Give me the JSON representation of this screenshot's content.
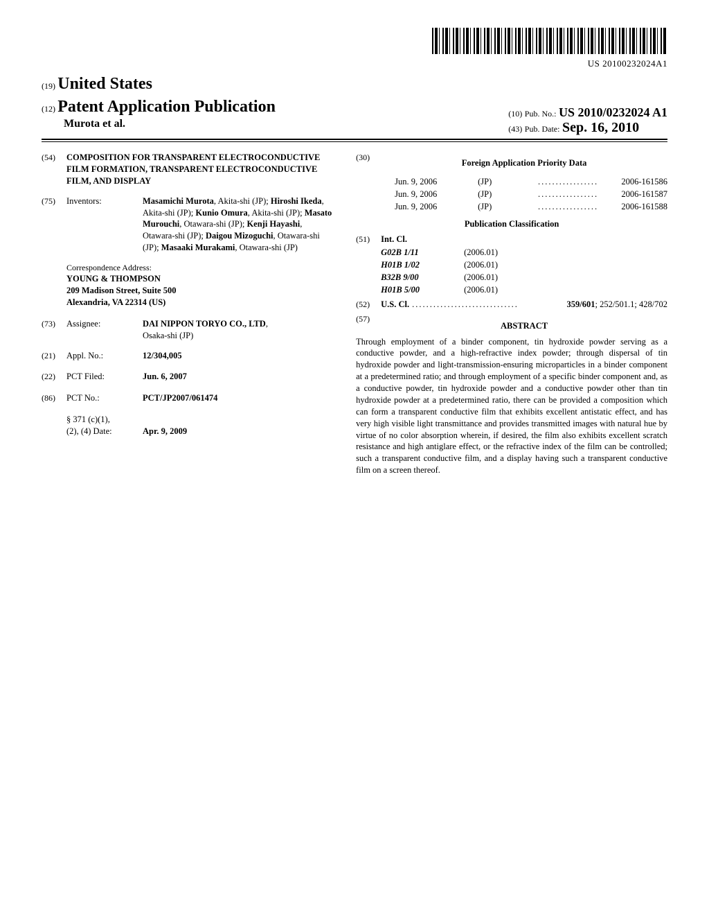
{
  "barcode": {
    "number": "US 20100232024A1"
  },
  "header": {
    "country_code": "(19)",
    "country_name": "United States",
    "pub_code": "(12)",
    "pub_type": "Patent Application Publication",
    "authors": "Murota et al.",
    "right": {
      "pubno_code": "(10)",
      "pubno_label": "Pub. No.:",
      "pubno": "US 2010/0232024 A1",
      "pubdate_code": "(43)",
      "pubdate_label": "Pub. Date:",
      "pubdate": "Sep. 16, 2010"
    }
  },
  "left": {
    "title_code": "(54)",
    "title": "COMPOSITION FOR TRANSPARENT ELECTROCONDUCTIVE FILM FORMATION, TRANSPARENT ELECTROCONDUCTIVE FILM, AND DISPLAY",
    "inventors_code": "(75)",
    "inventors_label": "Inventors:",
    "inventors_html": "<span class='name'>Masamichi Murota</span>, Akita-shi (JP); <span class='name'>Hiroshi Ikeda</span>, Akita-shi (JP); <span class='name'>Kunio Omura</span>, Akita-shi (JP); <span class='name'>Masato Murouchi</span>, Otawara-shi (JP); <span class='name'>Kenji Hayashi</span>, Otawara-shi (JP); <span class='name'>Daigou Mizoguchi</span>, Otawara-shi (JP); <span class='name'>Masaaki Murakami</span>, Otawara-shi (JP)",
    "corr_label": "Correspondence Address:",
    "corr_body": "YOUNG & THOMPSON<br>209 Madison Street, Suite 500<br>Alexandria, VA 22314 (US)",
    "assignee_code": "(73)",
    "assignee_label": "Assignee:",
    "assignee_name": "DAI NIPPON TORYO CO., LTD",
    "assignee_loc": "Osaka-shi (JP)",
    "applno_code": "(21)",
    "applno_label": "Appl. No.:",
    "applno": "12/304,005",
    "pctfiled_code": "(22)",
    "pctfiled_label": "PCT Filed:",
    "pctfiled": "Jun. 6, 2007",
    "pctno_code": "(86)",
    "pctno_label": "PCT No.:",
    "pctno": "PCT/JP2007/061474",
    "s371_label": "§ 371 (c)(1),",
    "s371_label2": "(2), (4) Date:",
    "s371_date": "Apr. 9, 2009"
  },
  "right": {
    "foreign_code": "(30)",
    "foreign_heading": "Foreign Application Priority Data",
    "priority": [
      {
        "date": "Jun. 9, 2006",
        "ctry": "(JP)",
        "num": "2006-161586"
      },
      {
        "date": "Jun. 9, 2006",
        "ctry": "(JP)",
        "num": "2006-161587"
      },
      {
        "date": "Jun. 9, 2006",
        "ctry": "(JP)",
        "num": "2006-161588"
      }
    ],
    "pubclass_heading": "Publication Classification",
    "intcl_code": "(51)",
    "intcl_label": "Int. Cl.",
    "intcl": [
      {
        "sym": "G02B 1/11",
        "ver": "(2006.01)"
      },
      {
        "sym": "H01B 1/02",
        "ver": "(2006.01)"
      },
      {
        "sym": "B32B 9/00",
        "ver": "(2006.01)"
      },
      {
        "sym": "H01B 5/00",
        "ver": "(2006.01)"
      }
    ],
    "uscl_code": "(52)",
    "uscl_label": "U.S. Cl.",
    "uscl_primary": "359/601",
    "uscl_rest": "; 252/501.1; 428/702",
    "abstract_code": "(57)",
    "abstract_heading": "ABSTRACT",
    "abstract_body": "Through employment of a binder component, tin hydroxide powder serving as a conductive powder, and a high-refractive index powder; through dispersal of tin hydroxide powder and light-transmission-ensuring microparticles in a binder component at a predetermined ratio; and through employment of a specific binder component and, as a conductive powder, tin hydroxide powder and a conductive powder other than tin hydroxide powder at a predetermined ratio, there can be provided a composition which can form a transparent conductive film that exhibits excellent antistatic effect, and has very high visible light transmittance and provides transmitted images with natural hue by virtue of no color absorption wherein, if desired, the film also exhibits excellent scratch resistance and high antiglare effect, or the refractive index of the film can be controlled; such a transparent conductive film, and a display having such a transparent conductive film on a screen thereof."
  }
}
